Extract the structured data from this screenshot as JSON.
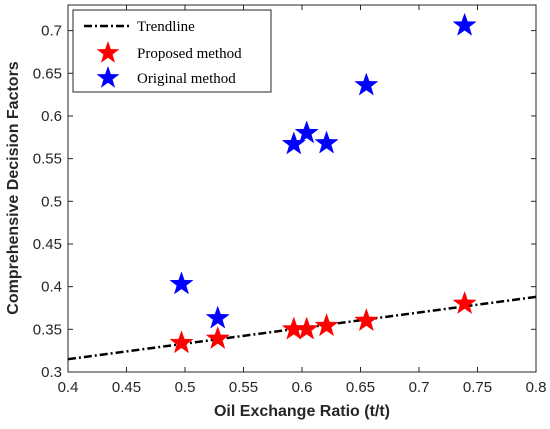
{
  "chart_data": {
    "type": "scatter",
    "xlabel": "Oil Exchange Ratio (t/t)",
    "ylabel": "Comprehensive Decision Factors",
    "xlim": [
      0.4,
      0.8
    ],
    "ylim": [
      0.3,
      0.73
    ],
    "xticks": [
      "0.4",
      "0.45",
      "0.5",
      "0.55",
      "0.6",
      "0.65",
      "0.7",
      "0.75",
      "0.8"
    ],
    "yticks": [
      "0.3",
      "0.35",
      "0.4",
      "0.45",
      "0.5",
      "0.55",
      "0.6",
      "0.65",
      "0.7"
    ],
    "grid": false,
    "legend_position": "top-left",
    "series": [
      {
        "name": "Trendline",
        "kind": "line",
        "style": "dash-dot",
        "color": "#000000",
        "x": [
          0.4,
          0.8
        ],
        "y": [
          0.315,
          0.388
        ]
      },
      {
        "name": "Proposed method",
        "kind": "scatter",
        "marker": "star",
        "color": "#ff0000",
        "x": [
          0.497,
          0.528,
          0.593,
          0.604,
          0.621,
          0.655,
          0.739
        ],
        "y": [
          0.334,
          0.339,
          0.35,
          0.35,
          0.354,
          0.36,
          0.38
        ]
      },
      {
        "name": "Original method",
        "kind": "scatter",
        "marker": "star",
        "color": "#0000ff",
        "x": [
          0.497,
          0.528,
          0.593,
          0.604,
          0.621,
          0.655,
          0.739
        ],
        "y": [
          0.403,
          0.363,
          0.567,
          0.58,
          0.568,
          0.636,
          0.706
        ]
      }
    ]
  }
}
